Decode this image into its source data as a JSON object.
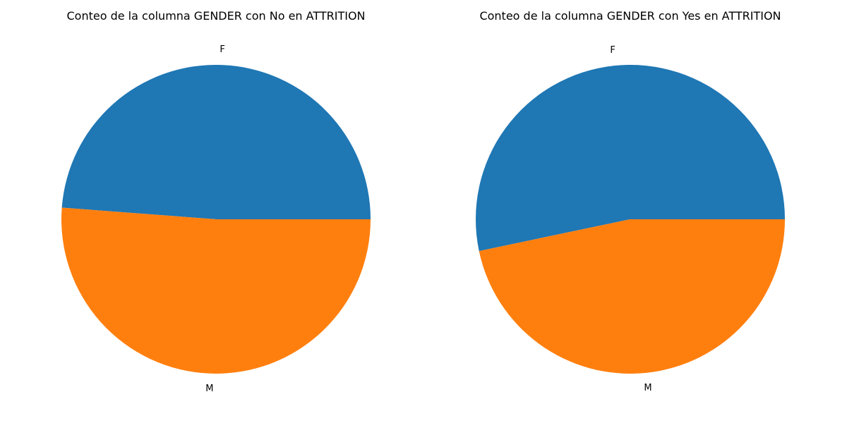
{
  "chart_data": [
    {
      "type": "pie",
      "title": "Conteo de la columna GENDER con No en ATTRITION",
      "labels": [
        "F",
        "M"
      ],
      "values": [
        48.8,
        51.2
      ],
      "colors": [
        "#1f77b4",
        "#ff7f0e"
      ],
      "start_angle_deg": 0,
      "direction": "counterclockwise"
    },
    {
      "type": "pie",
      "title": "Conteo de la columna GENDER con Yes en ATTRITION",
      "labels": [
        "F",
        "M"
      ],
      "values": [
        53.3,
        46.7
      ],
      "colors": [
        "#1f77b4",
        "#ff7f0e"
      ],
      "start_angle_deg": 0,
      "direction": "counterclockwise"
    }
  ]
}
